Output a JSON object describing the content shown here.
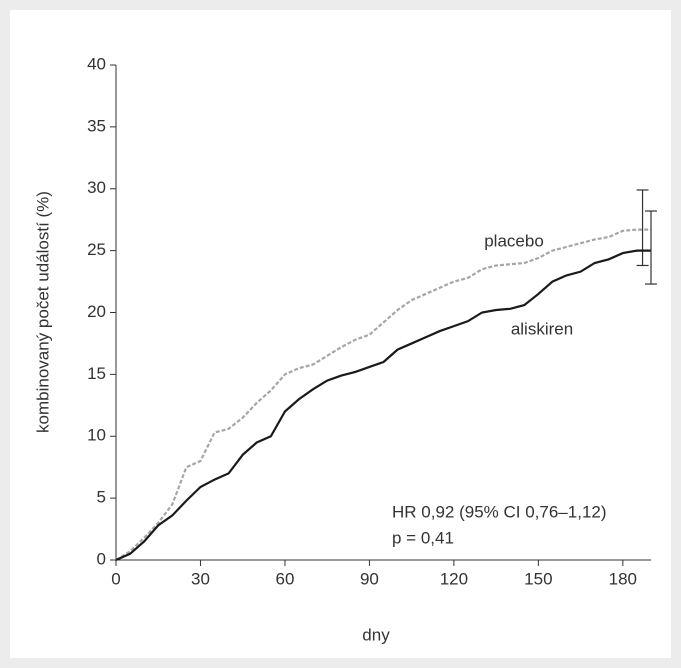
{
  "chart_data": {
    "type": "line",
    "xlabel": "dny",
    "ylabel": "kombinovaný počet událostí (%)",
    "xlim": [
      0,
      190
    ],
    "ylim": [
      0,
      40
    ],
    "xticks": [
      0,
      30,
      60,
      90,
      120,
      150,
      180
    ],
    "yticks": [
      0,
      5,
      10,
      15,
      20,
      25,
      30,
      35,
      40
    ],
    "x": [
      0,
      5,
      10,
      15,
      20,
      25,
      30,
      35,
      40,
      45,
      50,
      55,
      60,
      65,
      70,
      75,
      80,
      85,
      90,
      95,
      100,
      105,
      110,
      115,
      120,
      125,
      130,
      135,
      140,
      145,
      150,
      155,
      160,
      165,
      170,
      175,
      180,
      185,
      190
    ],
    "series": [
      {
        "name": "placebo",
        "color": "#a6a6a6",
        "dashed": true,
        "values": [
          0,
          0.7,
          1.8,
          3,
          4.5,
          7.5,
          8,
          10.3,
          10.6,
          11.5,
          12.7,
          13.7,
          15,
          15.5,
          15.8,
          16.5,
          17.2,
          17.8,
          18.2,
          19.2,
          20.2,
          21,
          21.5,
          22,
          22.5,
          22.8,
          23.5,
          23.8,
          23.9,
          24,
          24.4,
          25,
          25.3,
          25.6,
          25.9,
          26.1,
          26.6,
          26.7,
          26.7
        ],
        "ci_x": 187,
        "ci": [
          23.8,
          29.9
        ]
      },
      {
        "name": "aliskiren",
        "color": "#1a1a1a",
        "dashed": false,
        "values": [
          0,
          0.5,
          1.5,
          2.8,
          3.6,
          4.8,
          5.9,
          6.5,
          7,
          8.5,
          9.5,
          10,
          12,
          13,
          13.8,
          14.5,
          14.9,
          15.2,
          15.6,
          16,
          17,
          17.5,
          18,
          18.5,
          18.9,
          19.3,
          20,
          20.2,
          20.3,
          20.6,
          21.5,
          22.5,
          23,
          23.3,
          24,
          24.3,
          24.8,
          25,
          25
        ],
        "ci_x": 190,
        "ci": [
          22.3,
          28.2
        ]
      }
    ],
    "annotations": [
      "HR 0,92 (95% CI 0,76–1,12)",
      "p = 0,41"
    ]
  }
}
